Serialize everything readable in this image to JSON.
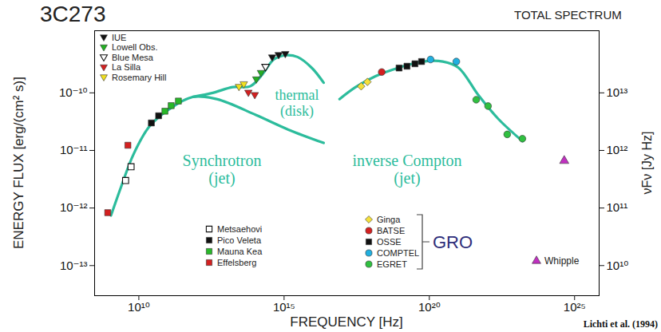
{
  "chart_data": {
    "type": "scatter",
    "title": "3C273",
    "subtitle": "TOTAL SPECTRUM",
    "xlabel": "FREQUENCY [Hz]",
    "ylabel": "ENERGY FLUX [erg/(cm² s)]",
    "y2label": "νFν [Jy Hz]",
    "annotations": [
      "Lichti et al. (1994)"
    ],
    "log": true,
    "grid": false,
    "legend": "inside",
    "legend_groups": [
      {
        "label": "GRO",
        "members": [
          "Ginga",
          "BATSE",
          "OSSE",
          "COMPTEL",
          "EGRET"
        ]
      }
    ],
    "xlim": [
      300000000.0,
      7e+25
    ],
    "xticks": [
      {
        "value": 10000000000.0,
        "label": "10¹⁰"
      },
      {
        "value": 1000000000000000.0,
        "label": "10¹⁵"
      },
      {
        "value": 1e+20,
        "label": "10²⁰"
      },
      {
        "value": 1e+25,
        "label": "10²⁵"
      }
    ],
    "ylim": [
      3e-14,
      1.2e-09
    ],
    "yticks": [
      {
        "value": 1e-13,
        "label": "10⁻¹³"
      },
      {
        "value": 1e-12,
        "label": "10⁻¹²"
      },
      {
        "value": 1e-11,
        "label": "10⁻¹¹"
      },
      {
        "value": 1e-10,
        "label": "10⁻¹⁰"
      }
    ],
    "y2lim": [
      3000000000.0,
      120000000000000.0
    ],
    "y2ticks": [
      {
        "value": 10000000000.0,
        "label": "10¹⁰"
      },
      {
        "value": 100000000000.0,
        "label": "10¹¹"
      },
      {
        "value": 1000000000000.0,
        "label": "10¹²"
      },
      {
        "value": 10000000000000.0,
        "label": "10¹³"
      }
    ],
    "series": [
      {
        "name": "Synchrotron (jet)",
        "type": "line",
        "color": "#2cbc9c",
        "line_style": "solid",
        "x": [
          1100000000.0,
          2500000000.0,
          6500000000.0,
          23000000000.0,
          110000000000.0,
          720000000000.0,
          4800000000000.0,
          110000000000000.0,
          1400000000000000.0,
          2.3e+16
        ],
        "values": [
          7.4e-13,
          2.4e-12,
          8.5e-12,
          2.6e-11,
          5.2e-11,
          8.5e-11,
          7.8e-11,
          4.1e-11,
          2.3e-11,
          1.35e-11
        ]
      },
      {
        "name": "thermal (disk)",
        "type": "line",
        "color": "#2cbc9c",
        "line_style": "solid",
        "x": [
          720000000000.0,
          3500000000000.0,
          17000000000000.0,
          68000000000000.0,
          180000000000000.0,
          440000000000000.0,
          1100000000000000.0,
          2900000000000000.0,
          9100000000000000.0,
          2.3e+16
        ],
        "values": [
          8.5e-11,
          1e-10,
          1.26e-10,
          1.3e-10,
          2.1e-10,
          3.8e-10,
          4.5e-10,
          4.2e-10,
          2.7e-10,
          1.5e-10
        ]
      },
      {
        "name": "inverse Compton (jet)",
        "type": "line",
        "color": "#2cbc9c",
        "line_style": "solid",
        "x": [
          8.1e+16,
          2.9e+17,
          1.4e+18,
          9.1e+18,
          6e+19,
          2.9e+20,
          1e+21,
          4.9e+21,
          2.4e+22,
          1.6e+23
        ],
        "values": [
          7.8e-11,
          1.26e-10,
          1.95e-10,
          2.75e-10,
          3.5e-10,
          3.5e-10,
          2.75e-10,
          9.1e-11,
          3.5e-11,
          1.45e-11
        ]
      },
      {
        "name": "IUE",
        "type": "scatter",
        "color": "#111111",
        "marker": "triangle-down",
        "x": [
          390000000000000.0,
          650000000000000.0,
          1100000000000000.0
        ],
        "values": [
          4.1e-10,
          4.5e-10,
          4.7e-10
        ]
      },
      {
        "name": "Lowell Obs.",
        "type": "scatter",
        "color": "#22b022",
        "marker": "triangle-down",
        "x": [
          110000000000000.0,
          160000000000000.0
        ],
        "values": [
          1.7e-10,
          2.2e-10
        ]
      },
      {
        "name": "Blue Mesa",
        "type": "scatter",
        "color": "#111111",
        "marker": "triangle-down-open",
        "x": [
          230000000000000.0
        ],
        "values": [
          2.8e-10
        ]
      },
      {
        "name": "La Silla",
        "type": "scatter",
        "color": "#d42020",
        "marker": "triangle-down",
        "x": [
          59000000000000.0,
          98000000000000.0
        ],
        "values": [
          1e-10,
          9.1e-11
        ]
      },
      {
        "name": "Rosemary Hill",
        "type": "scatter",
        "color": "#f0e020",
        "marker": "triangle-down",
        "x": [
          28000000000000.0,
          41000000000000.0
        ],
        "values": [
          1.26e-10,
          1.4e-10
        ]
      },
      {
        "name": "Metsaehovi",
        "type": "scatter",
        "color": "#111111",
        "marker": "square-open",
        "x": [
          3500000000.0,
          5400000000.0
        ],
        "values": [
          3e-12,
          5.2e-12
        ]
      },
      {
        "name": "Pico Veleta",
        "type": "scatter",
        "color": "#111111",
        "marker": "square",
        "x": [
          27000000000.0,
          48000000000.0
        ],
        "values": [
          3e-11,
          4e-11
        ]
      },
      {
        "name": "Mauna Kea",
        "type": "scatter",
        "color": "#28b828",
        "marker": "square",
        "x": [
          79000000000.0,
          130000000000.0,
          230000000000.0
        ],
        "values": [
          4.8e-11,
          6e-11,
          7.2e-11
        ]
      },
      {
        "name": "Effelsberg",
        "type": "scatter",
        "color": "#d42020",
        "marker": "square",
        "x": [
          850000000.0,
          4200000000.0
        ],
        "values": [
          8.3e-13,
          1.23e-11
        ]
      },
      {
        "name": "Ginga",
        "type": "scatter",
        "color": "#f5e03a",
        "marker": "diamond",
        "x": [
          4.5e+17,
          7.4e+17
        ],
        "values": [
          1.3e-10,
          1.55e-10
        ]
      },
      {
        "name": "BATSE",
        "type": "scatter",
        "color": "#d42020",
        "marker": "circle",
        "x": [
          2.3e+18
        ],
        "values": [
          2.3e-10
        ]
      },
      {
        "name": "OSSE",
        "type": "scatter",
        "color": "#111111",
        "marker": "square",
        "x": [
          9.1e+18,
          1.7e+19,
          3.2e+19,
          5.4e+19
        ],
        "values": [
          2.7e-10,
          2.9e-10,
          3.2e-10,
          3.5e-10
        ]
      },
      {
        "name": "COMPTEL",
        "type": "scatter",
        "color": "#20b0e0",
        "marker": "circle",
        "x": [
          1.1e+20,
          8.5e+20
        ],
        "values": [
          3.8e-10,
          3.5e-10
        ]
      },
      {
        "name": "EGRET",
        "type": "scatter",
        "color": "#30c040",
        "marker": "circle",
        "x": [
          4.1e+21,
          1.05e+22,
          4.8e+22,
          1.6e+23
        ],
        "values": [
          7.6e-11,
          5.9e-11,
          1.9e-11,
          1.6e-11
        ]
      },
      {
        "name": "Whipple",
        "type": "scatter",
        "color": "#c030c0",
        "marker": "triangle",
        "x": [
          4.4e+24
        ],
        "values": [
          6.6e-12
        ]
      }
    ]
  }
}
